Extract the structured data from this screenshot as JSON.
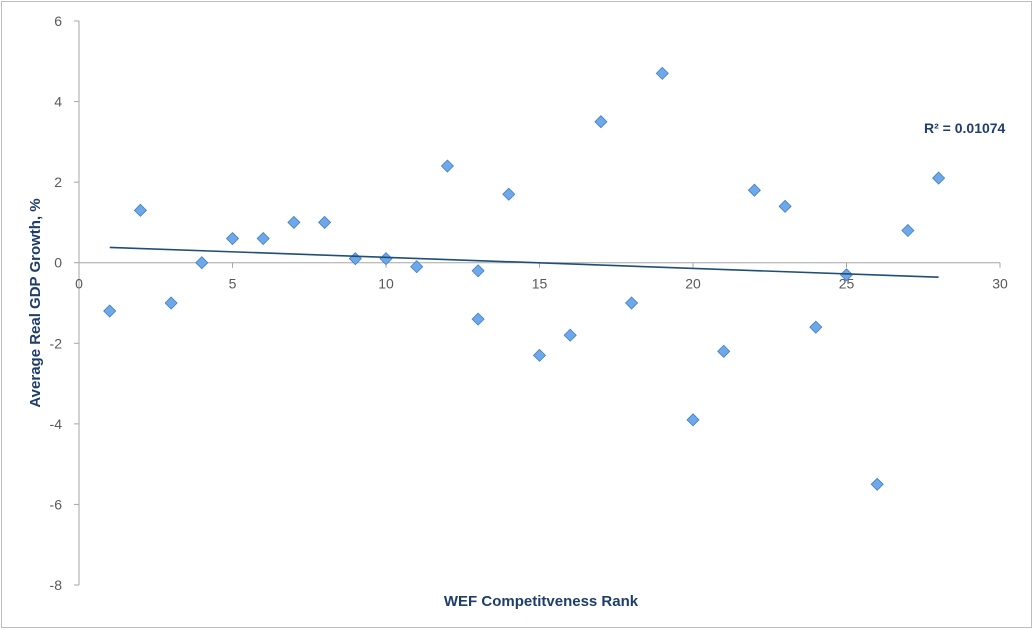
{
  "chart_data": {
    "type": "scatter",
    "title": "",
    "xlabel": "WEF Competitveness Rank",
    "ylabel": "Average Real GDP Growth, %",
    "xlim": [
      0,
      30
    ],
    "ylim": [
      -8,
      6
    ],
    "x_ticks": [
      0,
      5,
      10,
      15,
      20,
      25,
      30
    ],
    "y_ticks": [
      -8,
      -6,
      -4,
      -2,
      0,
      2,
      4,
      6
    ],
    "grid": false,
    "legend": "none",
    "marker": "diamond",
    "colors": {
      "marker_fill": "#6fa8e8",
      "marker_stroke": "#3f7fc8",
      "trendline": "#1f4e79",
      "axis": "#a6a6a6",
      "title": "#1f3d6b"
    },
    "series": [
      {
        "x": [
          1,
          2,
          3,
          4,
          5,
          6,
          7,
          8,
          9,
          10,
          11,
          12,
          13,
          13,
          14,
          15,
          16,
          17,
          18,
          19,
          20,
          21,
          22,
          23,
          24,
          25,
          26,
          27,
          28
        ],
        "y": [
          -1.2,
          1.3,
          -1.0,
          0.0,
          0.6,
          0.6,
          1.0,
          1.0,
          0.1,
          0.1,
          -0.1,
          2.4,
          -0.2,
          -1.4,
          1.7,
          -2.3,
          -1.8,
          3.5,
          -1.0,
          4.7,
          -3.9,
          -2.2,
          1.8,
          1.4,
          -1.6,
          -0.3,
          -5.5,
          0.8,
          2.1
        ]
      }
    ],
    "trendline": {
      "type": "linear",
      "x": [
        1,
        28
      ],
      "y": [
        0.38,
        -0.36
      ],
      "r_squared_label": "R² = 0.01074"
    }
  }
}
